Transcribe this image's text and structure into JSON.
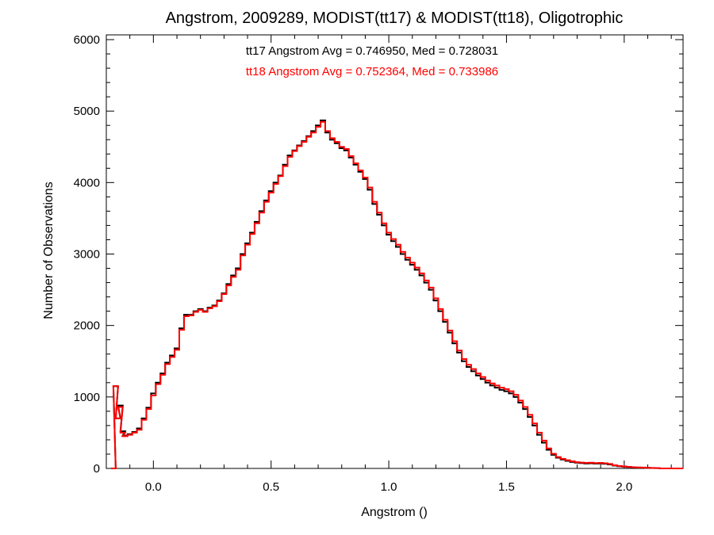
{
  "chart_data": {
    "type": "line",
    "title": "Angstrom, 2009289, MODIST(tt17) & MODIST(tt18), Oligotrophic",
    "xlabel": "Angstrom ()",
    "ylabel": "Number of Observations",
    "xlim": [
      -0.2,
      2.25
    ],
    "ylim": [
      0,
      6000
    ],
    "x_ticks": [
      0.0,
      0.5,
      1.0,
      1.5,
      2.0
    ],
    "x_tick_labels": [
      "0.0",
      "0.5",
      "1.0",
      "1.5",
      "2.0"
    ],
    "y_ticks": [
      0,
      1000,
      2000,
      3000,
      4000,
      5000,
      6000
    ],
    "y_tick_labels": [
      "0",
      "1000",
      "2000",
      "3000",
      "4000",
      "5000",
      "6000"
    ],
    "grid": false,
    "series": [
      {
        "name": "tt17",
        "color": "#000000",
        "annotation": "tt17 Angstrom Avg = 0.746950, Med = 0.728031",
        "points": [
          [
            -0.17,
            0
          ],
          [
            -0.16,
            1150
          ],
          [
            -0.15,
            700
          ],
          [
            -0.14,
            880
          ],
          [
            -0.13,
            520
          ],
          [
            -0.12,
            460
          ],
          [
            -0.1,
            480
          ],
          [
            -0.08,
            510
          ],
          [
            -0.06,
            560
          ],
          [
            -0.04,
            700
          ],
          [
            -0.02,
            850
          ],
          [
            0.0,
            1050
          ],
          [
            0.02,
            1200
          ],
          [
            0.04,
            1330
          ],
          [
            0.06,
            1480
          ],
          [
            0.08,
            1580
          ],
          [
            0.1,
            1680
          ],
          [
            0.12,
            1960
          ],
          [
            0.14,
            2150
          ],
          [
            0.16,
            2150
          ],
          [
            0.18,
            2200
          ],
          [
            0.2,
            2230
          ],
          [
            0.22,
            2200
          ],
          [
            0.24,
            2250
          ],
          [
            0.26,
            2280
          ],
          [
            0.28,
            2350
          ],
          [
            0.3,
            2450
          ],
          [
            0.32,
            2580
          ],
          [
            0.34,
            2700
          ],
          [
            0.36,
            2800
          ],
          [
            0.38,
            3000
          ],
          [
            0.4,
            3150
          ],
          [
            0.42,
            3300
          ],
          [
            0.44,
            3450
          ],
          [
            0.46,
            3600
          ],
          [
            0.48,
            3750
          ],
          [
            0.5,
            3880
          ],
          [
            0.52,
            4000
          ],
          [
            0.54,
            4100
          ],
          [
            0.56,
            4250
          ],
          [
            0.58,
            4380
          ],
          [
            0.6,
            4450
          ],
          [
            0.62,
            4520
          ],
          [
            0.64,
            4580
          ],
          [
            0.66,
            4650
          ],
          [
            0.68,
            4720
          ],
          [
            0.7,
            4800
          ],
          [
            0.72,
            4870
          ],
          [
            0.74,
            4700
          ],
          [
            0.76,
            4600
          ],
          [
            0.78,
            4550
          ],
          [
            0.8,
            4480
          ],
          [
            0.82,
            4450
          ],
          [
            0.84,
            4350
          ],
          [
            0.86,
            4250
          ],
          [
            0.88,
            4150
          ],
          [
            0.9,
            4050
          ],
          [
            0.92,
            3900
          ],
          [
            0.94,
            3700
          ],
          [
            0.96,
            3550
          ],
          [
            0.98,
            3400
          ],
          [
            1.0,
            3270
          ],
          [
            1.02,
            3180
          ],
          [
            1.04,
            3100
          ],
          [
            1.06,
            3000
          ],
          [
            1.08,
            2920
          ],
          [
            1.1,
            2850
          ],
          [
            1.12,
            2780
          ],
          [
            1.14,
            2700
          ],
          [
            1.16,
            2600
          ],
          [
            1.18,
            2500
          ],
          [
            1.2,
            2350
          ],
          [
            1.22,
            2200
          ],
          [
            1.24,
            2050
          ],
          [
            1.26,
            1900
          ],
          [
            1.28,
            1750
          ],
          [
            1.3,
            1620
          ],
          [
            1.32,
            1500
          ],
          [
            1.34,
            1420
          ],
          [
            1.36,
            1360
          ],
          [
            1.38,
            1300
          ],
          [
            1.4,
            1250
          ],
          [
            1.42,
            1200
          ],
          [
            1.44,
            1160
          ],
          [
            1.46,
            1130
          ],
          [
            1.48,
            1100
          ],
          [
            1.5,
            1080
          ],
          [
            1.52,
            1050
          ],
          [
            1.54,
            1000
          ],
          [
            1.56,
            920
          ],
          [
            1.58,
            830
          ],
          [
            1.6,
            720
          ],
          [
            1.62,
            600
          ],
          [
            1.64,
            470
          ],
          [
            1.66,
            360
          ],
          [
            1.68,
            260
          ],
          [
            1.7,
            190
          ],
          [
            1.72,
            150
          ],
          [
            1.74,
            125
          ],
          [
            1.76,
            105
          ],
          [
            1.78,
            90
          ],
          [
            1.8,
            80
          ],
          [
            1.82,
            75
          ],
          [
            1.84,
            70
          ],
          [
            1.86,
            72
          ],
          [
            1.88,
            68
          ],
          [
            1.9,
            70
          ],
          [
            1.92,
            65
          ],
          [
            1.94,
            55
          ],
          [
            1.96,
            40
          ],
          [
            1.98,
            30
          ],
          [
            2.0,
            25
          ],
          [
            2.02,
            20
          ],
          [
            2.04,
            15
          ],
          [
            2.06,
            12
          ],
          [
            2.08,
            10
          ],
          [
            2.1,
            8
          ],
          [
            2.12,
            6
          ],
          [
            2.14,
            4
          ],
          [
            2.16,
            0
          ]
        ]
      },
      {
        "name": "tt18",
        "color": "#ff0000",
        "annotation": "tt18 Angstrom Avg = 0.752364, Med = 0.733986",
        "points": [
          [
            -0.17,
            0
          ],
          [
            -0.16,
            1150
          ],
          [
            -0.15,
            700
          ],
          [
            -0.14,
            860
          ],
          [
            -0.13,
            500
          ],
          [
            -0.12,
            450
          ],
          [
            -0.1,
            470
          ],
          [
            -0.08,
            500
          ],
          [
            -0.06,
            540
          ],
          [
            -0.04,
            680
          ],
          [
            -0.02,
            830
          ],
          [
            0.0,
            1020
          ],
          [
            0.02,
            1180
          ],
          [
            0.04,
            1310
          ],
          [
            0.06,
            1460
          ],
          [
            0.08,
            1560
          ],
          [
            0.1,
            1660
          ],
          [
            0.12,
            1940
          ],
          [
            0.14,
            2130
          ],
          [
            0.16,
            2140
          ],
          [
            0.18,
            2190
          ],
          [
            0.2,
            2220
          ],
          [
            0.22,
            2190
          ],
          [
            0.24,
            2240
          ],
          [
            0.26,
            2270
          ],
          [
            0.28,
            2340
          ],
          [
            0.3,
            2440
          ],
          [
            0.32,
            2560
          ],
          [
            0.34,
            2680
          ],
          [
            0.36,
            2780
          ],
          [
            0.38,
            2980
          ],
          [
            0.4,
            3130
          ],
          [
            0.42,
            3280
          ],
          [
            0.44,
            3430
          ],
          [
            0.46,
            3580
          ],
          [
            0.48,
            3730
          ],
          [
            0.5,
            3860
          ],
          [
            0.52,
            3980
          ],
          [
            0.54,
            4090
          ],
          [
            0.56,
            4230
          ],
          [
            0.58,
            4360
          ],
          [
            0.6,
            4440
          ],
          [
            0.62,
            4510
          ],
          [
            0.64,
            4570
          ],
          [
            0.66,
            4640
          ],
          [
            0.68,
            4700
          ],
          [
            0.7,
            4780
          ],
          [
            0.72,
            4850
          ],
          [
            0.74,
            4720
          ],
          [
            0.76,
            4620
          ],
          [
            0.78,
            4570
          ],
          [
            0.8,
            4500
          ],
          [
            0.82,
            4470
          ],
          [
            0.84,
            4370
          ],
          [
            0.86,
            4270
          ],
          [
            0.88,
            4170
          ],
          [
            0.9,
            4070
          ],
          [
            0.92,
            3930
          ],
          [
            0.94,
            3730
          ],
          [
            0.96,
            3580
          ],
          [
            0.98,
            3430
          ],
          [
            1.0,
            3300
          ],
          [
            1.02,
            3210
          ],
          [
            1.04,
            3130
          ],
          [
            1.06,
            3030
          ],
          [
            1.08,
            2950
          ],
          [
            1.1,
            2880
          ],
          [
            1.12,
            2810
          ],
          [
            1.14,
            2730
          ],
          [
            1.16,
            2630
          ],
          [
            1.18,
            2530
          ],
          [
            1.2,
            2380
          ],
          [
            1.22,
            2230
          ],
          [
            1.24,
            2080
          ],
          [
            1.26,
            1930
          ],
          [
            1.28,
            1780
          ],
          [
            1.3,
            1650
          ],
          [
            1.32,
            1530
          ],
          [
            1.34,
            1450
          ],
          [
            1.36,
            1390
          ],
          [
            1.38,
            1330
          ],
          [
            1.4,
            1280
          ],
          [
            1.42,
            1230
          ],
          [
            1.44,
            1190
          ],
          [
            1.46,
            1160
          ],
          [
            1.48,
            1130
          ],
          [
            1.5,
            1110
          ],
          [
            1.52,
            1080
          ],
          [
            1.54,
            1030
          ],
          [
            1.56,
            950
          ],
          [
            1.58,
            860
          ],
          [
            1.6,
            750
          ],
          [
            1.62,
            630
          ],
          [
            1.64,
            500
          ],
          [
            1.66,
            390
          ],
          [
            1.68,
            280
          ],
          [
            1.7,
            205
          ],
          [
            1.72,
            160
          ],
          [
            1.74,
            135
          ],
          [
            1.76,
            115
          ],
          [
            1.78,
            100
          ],
          [
            1.8,
            88
          ],
          [
            1.82,
            82
          ],
          [
            1.84,
            78
          ],
          [
            1.86,
            80
          ],
          [
            1.88,
            75
          ],
          [
            1.9,
            77
          ],
          [
            1.92,
            72
          ],
          [
            1.94,
            62
          ],
          [
            1.96,
            45
          ],
          [
            1.98,
            35
          ],
          [
            2.0,
            28
          ],
          [
            2.02,
            22
          ],
          [
            2.04,
            17
          ],
          [
            2.06,
            14
          ],
          [
            2.08,
            12
          ],
          [
            2.1,
            9
          ],
          [
            2.12,
            7
          ],
          [
            2.14,
            5
          ],
          [
            2.16,
            0
          ]
        ]
      }
    ]
  }
}
